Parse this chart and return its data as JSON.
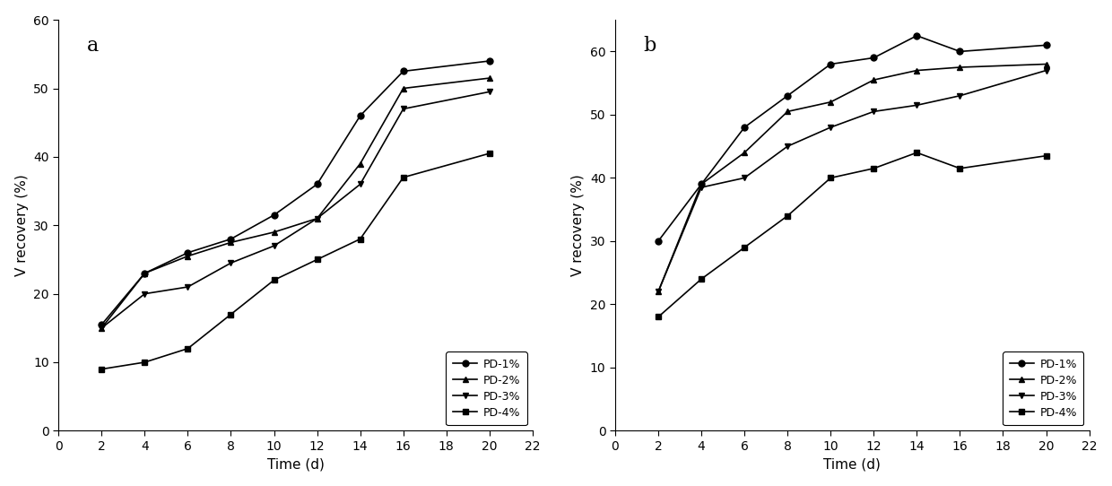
{
  "time_a": [
    2,
    4,
    6,
    8,
    10,
    12,
    14,
    16,
    20
  ],
  "a_pd1": [
    15.5,
    23.0,
    26.0,
    28.0,
    31.5,
    36.0,
    46.0,
    52.5,
    54.0
  ],
  "a_pd2": [
    15.0,
    23.0,
    25.5,
    27.5,
    29.0,
    31.0,
    39.0,
    50.0,
    51.5
  ],
  "a_pd3": [
    15.0,
    20.0,
    21.0,
    24.5,
    27.0,
    31.0,
    36.0,
    47.0,
    49.5
  ],
  "a_pd4": [
    9.0,
    10.0,
    12.0,
    17.0,
    22.0,
    25.0,
    28.0,
    37.0,
    40.5
  ],
  "time_b": [
    2,
    4,
    6,
    8,
    10,
    12,
    14,
    16,
    20
  ],
  "b_pd1": [
    30.0,
    39.0,
    48.0,
    53.0,
    58.0,
    59.0,
    62.5,
    60.0,
    61.0
  ],
  "b_pd2": [
    22.0,
    39.0,
    44.0,
    50.5,
    52.0,
    55.5,
    57.0,
    57.5,
    58.0
  ],
  "b_pd3": [
    22.0,
    38.5,
    40.0,
    45.0,
    48.0,
    50.5,
    51.5,
    53.0,
    57.0
  ],
  "b_pd4": [
    18.0,
    24.0,
    29.0,
    34.0,
    40.0,
    41.5,
    44.0,
    41.5,
    43.5
  ],
  "ylabel": "V recovery (%)",
  "xlabel": "Time (d)",
  "label_a": "a",
  "label_b": "b",
  "legend_labels": [
    "PD-1%",
    "PD-2%",
    "PD-3%",
    "PD-4%"
  ],
  "xlim": [
    0,
    22
  ],
  "xticks": [
    0,
    2,
    4,
    6,
    8,
    10,
    12,
    14,
    16,
    18,
    20,
    22
  ],
  "ylim_a": [
    0,
    60
  ],
  "yticks_a": [
    0,
    10,
    20,
    30,
    40,
    50,
    60
  ],
  "ylim_b": [
    0,
    65
  ],
  "yticks_b": [
    0,
    10,
    20,
    30,
    40,
    50,
    60
  ],
  "line_color": "#000000",
  "marker_pd1": "o",
  "marker_pd2": "^",
  "marker_pd3": "v",
  "marker_pd4": "s",
  "markersize": 5,
  "linewidth": 1.2,
  "fontsize_label": 11,
  "fontsize_tick": 10,
  "fontsize_legend": 9,
  "fontsize_panel_label": 16
}
